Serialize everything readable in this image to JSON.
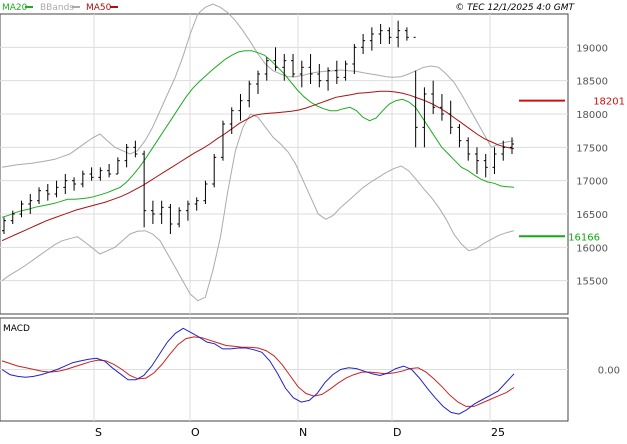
{
  "header": {
    "legend": [
      {
        "label": "MA20",
        "color": "#22aa22"
      },
      {
        "label": "BBands",
        "color": "#aaaaaa"
      },
      {
        "label": "MA50",
        "color": "#aa1111"
      }
    ],
    "copyright": "© TEC 12/1/2025 4:0 GMT"
  },
  "colors": {
    "price": "#000000",
    "ma20": "#22aa22",
    "ma50": "#aa1111",
    "bbands": "#aaaaaa",
    "macd": "#2222cc",
    "signal": "#cc2222",
    "resistance": "#cc1111",
    "support": "#11aa11",
    "grid": "#dddddd",
    "panel_bg": "#ffffff",
    "frame": "#444444"
  },
  "chart_data": [
    {
      "type": "line",
      "title": "",
      "ylim": [
        15000,
        19500
      ],
      "yticks": [
        {
          "value": 19000,
          "label": "19000"
        },
        {
          "value": 18500,
          "label": "18500"
        },
        {
          "value": 18000,
          "label": "18000"
        },
        {
          "value": 17500,
          "label": "17500"
        },
        {
          "value": 17000,
          "label": "17000"
        },
        {
          "value": 16500,
          "label": "16500"
        },
        {
          "value": 16000,
          "label": "16000"
        },
        {
          "value": 15500,
          "label": "15500"
        }
      ],
      "resistance": {
        "value": 18201,
        "label": "18201"
      },
      "support": {
        "value": 16166,
        "label": "16166"
      },
      "series": [
        {
          "name": "MA20",
          "values": [
            16450,
            16480,
            16520,
            16550,
            16570,
            16600,
            16620,
            16640,
            16660,
            16690,
            16720,
            16720,
            16730,
            16740,
            16760,
            16790,
            16820,
            16860,
            16900,
            16980,
            17090,
            17210,
            17350,
            17500,
            17650,
            17800,
            17950,
            18100,
            18250,
            18380,
            18480,
            18570,
            18660,
            18740,
            18820,
            18880,
            18930,
            18950,
            18950,
            18920,
            18880,
            18800,
            18700,
            18600,
            18480,
            18360,
            18260,
            18180,
            18120,
            18080,
            18050,
            18050,
            18080,
            18100,
            18050,
            17950,
            17900,
            17940,
            18050,
            18150,
            18200,
            18220,
            18180,
            18100,
            17950,
            17800,
            17650,
            17500,
            17400,
            17300,
            17200,
            17150,
            17080,
            17020,
            16980,
            16960,
            16920,
            16910,
            16900
          ]
        },
        {
          "name": "MA50",
          "values": [
            16100,
            16150,
            16200,
            16250,
            16300,
            16350,
            16400,
            16440,
            16480,
            16520,
            16560,
            16590,
            16620,
            16650,
            16680,
            16720,
            16760,
            16810,
            16870,
            16930,
            17000,
            17070,
            17140,
            17210,
            17280,
            17350,
            17420,
            17480,
            17550,
            17630,
            17700,
            17780,
            17860,
            17920,
            17980,
            18000,
            18010,
            18020,
            18030,
            18040,
            18060,
            18090,
            18130,
            18170,
            18210,
            18250,
            18270,
            18290,
            18310,
            18320,
            18330,
            18340,
            18340,
            18330,
            18310,
            18280,
            18240,
            18200,
            18150,
            18090,
            18020,
            17940,
            17860,
            17780,
            17700,
            17630,
            17580,
            17530,
            17500,
            17480
          ]
        },
        {
          "name": "BB Upper",
          "values": [
            17200,
            17220,
            17240,
            17250,
            17260,
            17280,
            17300,
            17320,
            17360,
            17400,
            17480,
            17560,
            17640,
            17700,
            17600,
            17500,
            17450,
            17400,
            17450,
            17600,
            17800,
            18050,
            18300,
            18550,
            18850,
            19200,
            19500,
            19600,
            19650,
            19600,
            19520,
            19400,
            19250,
            19080,
            18900,
            18750,
            18650,
            18600,
            18560,
            18560,
            18580,
            18610,
            18630,
            18640,
            18650,
            18660,
            18650,
            18640,
            18620,
            18600,
            18580,
            18560,
            18550,
            18560,
            18600,
            18650,
            18700,
            18720,
            18700,
            18600,
            18480,
            18300,
            18100,
            17900,
            17700,
            17500,
            17550,
            17580,
            17600
          ]
        },
        {
          "name": "BB Lower",
          "values": [
            15500,
            15580,
            15650,
            15720,
            15800,
            15880,
            15960,
            16040,
            16100,
            16130,
            16160,
            16080,
            15990,
            15900,
            15950,
            16000,
            16100,
            16200,
            16240,
            16250,
            16200,
            16100,
            15900,
            15700,
            15500,
            15300,
            15200,
            15250,
            15650,
            16150,
            16850,
            17450,
            17800,
            18000,
            17950,
            17800,
            17650,
            17550,
            17430,
            17250,
            17000,
            16750,
            16500,
            16420,
            16480,
            16600,
            16700,
            16800,
            16900,
            16980,
            17050,
            17120,
            17180,
            17220,
            17150,
            17020,
            16880,
            16750,
            16600,
            16420,
            16200,
            16050,
            15950,
            15980,
            16060,
            16120,
            16180,
            16220,
            16250
          ]
        }
      ]
    },
    {
      "type": "line",
      "title": "MACD",
      "ylim": [
        -100,
        100
      ],
      "yticks": [
        {
          "value": 0,
          "label": "0.00"
        }
      ],
      "series": [
        {
          "name": "MACD",
          "values": [
            0.0,
            -0.06,
            -0.08,
            -0.09,
            -0.08,
            -0.06,
            -0.03,
            0.0,
            0.04,
            0.08,
            0.1,
            0.12,
            0.13,
            0.1,
            0.02,
            -0.05,
            -0.12,
            -0.12,
            -0.07,
            0.04,
            0.18,
            0.32,
            0.42,
            0.48,
            0.43,
            0.38,
            0.32,
            0.3,
            0.24,
            0.24,
            0.25,
            0.25,
            0.23,
            0.2,
            0.1,
            -0.05,
            -0.22,
            -0.33,
            -0.38,
            -0.36,
            -0.28,
            -0.15,
            -0.06,
            0.0,
            0.02,
            0.01,
            -0.02,
            -0.05,
            -0.07,
            -0.04,
            0.01,
            0.04,
            0.0,
            -0.1,
            -0.22,
            -0.33,
            -0.43,
            -0.5,
            -0.52,
            -0.47,
            -0.4,
            -0.35,
            -0.3,
            -0.25,
            -0.15,
            -0.05
          ]
        },
        {
          "name": "Signal",
          "values": [
            0.1,
            0.07,
            0.04,
            0.02,
            0.0,
            -0.02,
            -0.03,
            -0.02,
            0.0,
            0.03,
            0.06,
            0.09,
            0.11,
            0.1,
            0.06,
            0.0,
            -0.07,
            -0.11,
            -0.1,
            -0.04,
            0.06,
            0.18,
            0.29,
            0.36,
            0.38,
            0.37,
            0.34,
            0.31,
            0.28,
            0.27,
            0.26,
            0.26,
            0.25,
            0.22,
            0.16,
            0.06,
            -0.07,
            -0.2,
            -0.28,
            -0.31,
            -0.29,
            -0.23,
            -0.16,
            -0.1,
            -0.06,
            -0.03,
            -0.03,
            -0.04,
            -0.05,
            -0.04,
            -0.02,
            0.01,
            0.02,
            -0.03,
            -0.11,
            -0.2,
            -0.3,
            -0.38,
            -0.43,
            -0.43,
            -0.39,
            -0.35,
            -0.31,
            -0.27,
            -0.21
          ]
        }
      ]
    }
  ],
  "price_bars": [
    [
      16250,
      16200,
      16450,
      16400
    ],
    [
      16400,
      16350,
      16550,
      16500
    ],
    [
      16500,
      16450,
      16700,
      16650
    ],
    [
      16650,
      16500,
      16800,
      16700
    ],
    [
      16700,
      16650,
      16900,
      16850
    ],
    [
      16850,
      16700,
      16950,
      16800
    ],
    [
      16800,
      16750,
      17000,
      16900
    ],
    [
      16900,
      16800,
      17100,
      17000
    ],
    [
      17000,
      16850,
      17050,
      16950
    ],
    [
      16950,
      16900,
      17150,
      17100
    ],
    [
      17100,
      17000,
      17200,
      17050
    ],
    [
      17050,
      17000,
      17200,
      17150
    ],
    [
      17150,
      17050,
      17250,
      17100
    ],
    [
      17100,
      17100,
      17350,
      17300
    ],
    [
      17300,
      17200,
      17550,
      17500
    ],
    [
      17500,
      17350,
      17600,
      17400
    ],
    [
      17400,
      16300,
      17450,
      16550
    ],
    [
      16550,
      16350,
      16700,
      16500
    ],
    [
      16500,
      16350,
      16700,
      16600
    ],
    [
      16600,
      16200,
      16650,
      16350
    ],
    [
      16350,
      16300,
      16600,
      16550
    ],
    [
      16550,
      16400,
      16700,
      16650
    ],
    [
      16650,
      16550,
      16750,
      16700
    ],
    [
      16700,
      16650,
      17000,
      16950
    ],
    [
      16950,
      16900,
      17400,
      17350
    ],
    [
      17350,
      17300,
      17900,
      17850
    ],
    [
      17850,
      17700,
      18100,
      18050
    ],
    [
      18050,
      17900,
      18300,
      18200
    ],
    [
      18200,
      18100,
      18500,
      18450
    ],
    [
      18450,
      18300,
      18650,
      18600
    ],
    [
      18600,
      18500,
      18850,
      18800
    ],
    [
      18800,
      18650,
      19000,
      18700
    ],
    [
      18700,
      18500,
      18900,
      18800
    ],
    [
      18800,
      18550,
      18900,
      18600
    ],
    [
      18600,
      18400,
      18800,
      18700
    ],
    [
      18700,
      18450,
      18900,
      18600
    ],
    [
      18600,
      18400,
      18750,
      18500
    ],
    [
      18500,
      18350,
      18700,
      18650
    ],
    [
      18650,
      18450,
      18800,
      18550
    ],
    [
      18550,
      18500,
      18800,
      18750
    ],
    [
      18750,
      18600,
      19050,
      19000
    ],
    [
      19000,
      18900,
      19200,
      19100
    ],
    [
      19100,
      18950,
      19300,
      19200
    ],
    [
      19200,
      19050,
      19350,
      19250
    ],
    [
      19250,
      19050,
      19300,
      19150
    ],
    [
      19150,
      19000,
      19400,
      19250
    ],
    [
      19250,
      19100,
      19300,
      19150
    ],
    [
      19150,
      17500,
      18650,
      17800
    ],
    [
      17800,
      17500,
      18400,
      18300
    ],
    [
      18300,
      18000,
      18500,
      18100
    ],
    [
      18100,
      17900,
      18300,
      18000
    ],
    [
      18000,
      17700,
      18200,
      17800
    ],
    [
      17800,
      17500,
      17850,
      17600
    ],
    [
      17600,
      17300,
      17650,
      17400
    ],
    [
      17400,
      17100,
      17500,
      17300
    ],
    [
      17300,
      17050,
      17400,
      17200
    ],
    [
      17200,
      17100,
      17500,
      17400
    ],
    [
      17400,
      17300,
      17600,
      17500
    ],
    [
      17500,
      17400,
      17650,
      17550
    ]
  ]
}
